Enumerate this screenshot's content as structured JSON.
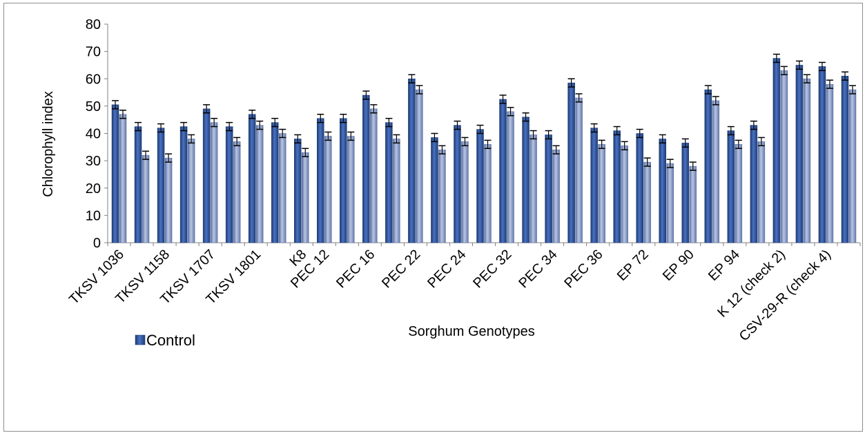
{
  "chart_data": {
    "type": "bar",
    "xlabel": "Sorghum Genotypes",
    "ylabel": "Chlorophyll index",
    "ylim": [
      0,
      80
    ],
    "y_ticks": [
      0,
      10,
      20,
      30,
      40,
      50,
      60,
      70,
      80
    ],
    "grid": false,
    "legend": {
      "placement": "bottom-left",
      "entries": [
        "Control"
      ]
    },
    "categories": [
      "TKSV 1036",
      "",
      "TKSV 1158",
      "",
      "TKSV 1707",
      "",
      "TKSV 1801",
      "",
      "K8",
      "PEC 12",
      "",
      "PEC 16",
      "",
      "PEC 22",
      "",
      "PEC 24",
      "",
      "PEC 32",
      "",
      "PEC 34",
      "",
      "PEC 36",
      "",
      "EP 72",
      "",
      "EP 90",
      "",
      "EP 94",
      "",
      "K 12 (check 2)",
      "",
      "CSV-29-R (check 4)",
      ""
    ],
    "series": [
      {
        "name": "Control",
        "color": "#2a4d8f",
        "values": [
          50.5,
          42.5,
          42,
          42.5,
          49,
          42.5,
          47,
          44,
          38,
          45.5,
          45.5,
          54,
          44,
          60,
          38.5,
          43,
          41.5,
          52.5,
          46,
          39.5,
          58.5,
          42,
          41,
          40,
          38,
          36.5,
          56,
          41,
          43,
          67.5,
          65,
          64.5,
          61
        ]
      },
      {
        "name": "",
        "color": "#7f93bf",
        "values": [
          47,
          32,
          31,
          38,
          44,
          37,
          43,
          40,
          33,
          39,
          39,
          49,
          38,
          56,
          34,
          37,
          36,
          48,
          39.5,
          34,
          53,
          36,
          35.5,
          29.5,
          29,
          28,
          52,
          36,
          37,
          63,
          60,
          58,
          56
        ]
      }
    ],
    "error": 1.5
  }
}
